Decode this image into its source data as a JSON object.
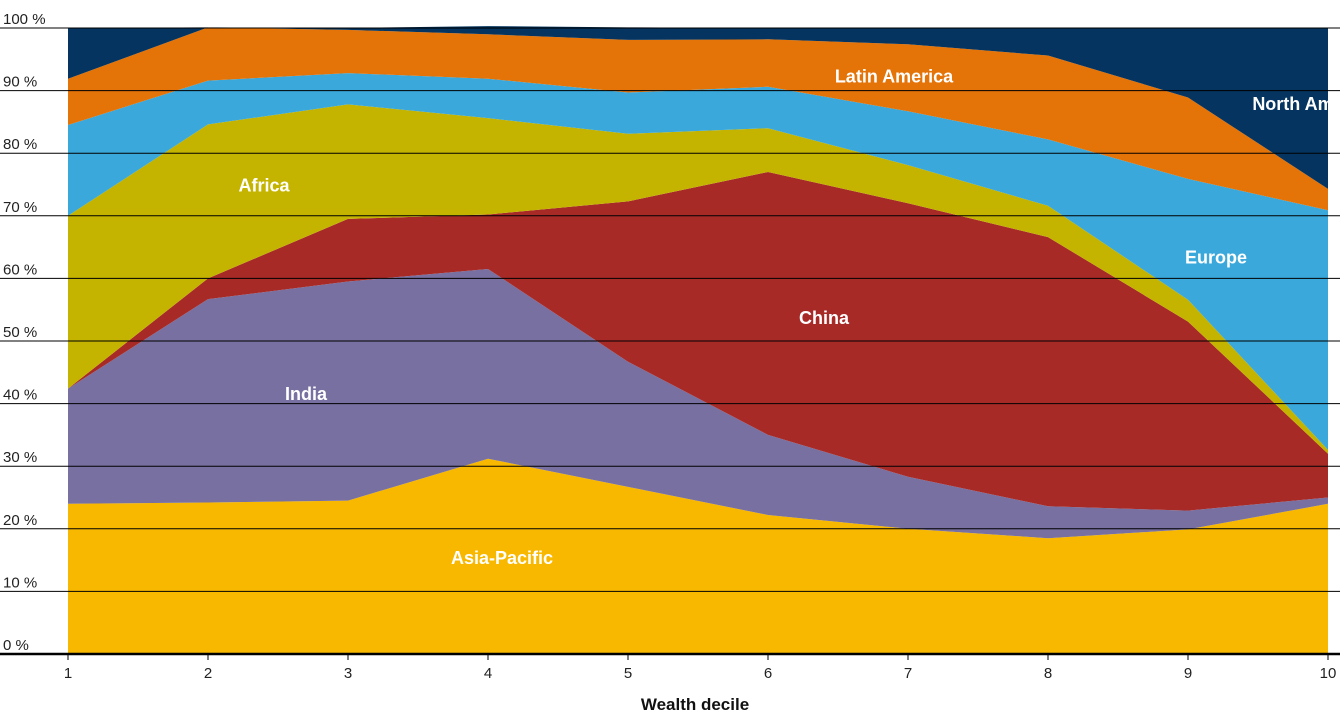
{
  "chart_data": {
    "type": "area",
    "stacked": true,
    "title": "",
    "xlabel": "Wealth decile",
    "ylabel": "",
    "x": [
      1,
      2,
      3,
      4,
      5,
      6,
      7,
      8,
      9,
      10
    ],
    "x_tick_labels": [
      "1",
      "2",
      "3",
      "4",
      "5",
      "6",
      "7",
      "8",
      "9",
      "10"
    ],
    "ylim": [
      0,
      100
    ],
    "y_ticks": [
      0,
      10,
      20,
      30,
      40,
      50,
      60,
      70,
      80,
      90,
      100
    ],
    "y_tick_labels": [
      "0 %",
      "10 %",
      "20 %",
      "30 %",
      "40 %",
      "50 %",
      "60 %",
      "70 %",
      "80 %",
      "90 %",
      "100 %"
    ],
    "grid": "horizontal",
    "legend": "inline labels",
    "series": [
      {
        "name": "Asia-Pacific",
        "color": "#F9B800",
        "values": [
          24,
          24.2,
          24.5,
          31.2,
          26.7,
          22.2,
          20,
          18.5,
          19.9,
          24
        ]
      },
      {
        "name": "India",
        "color": "#7870A0",
        "values": [
          18.4,
          32.5,
          35,
          30.3,
          20,
          12.8,
          8.3,
          5.1,
          3,
          1
        ]
      },
      {
        "name": "China",
        "color": "#A82A27",
        "values": [
          0,
          3.3,
          10,
          8.7,
          25.6,
          42,
          43.7,
          43,
          30.2,
          7
        ]
      },
      {
        "name": "Africa",
        "color": "#C4B400",
        "values": [
          27.6,
          24.6,
          18.3,
          15.4,
          10.8,
          7,
          6.1,
          5,
          3.5,
          0.6
        ]
      },
      {
        "name": "Europe",
        "color": "#3AA8DB",
        "values": [
          14.5,
          7,
          5,
          6.3,
          6.6,
          6.6,
          8.6,
          10.6,
          19.3,
          38.3
        ]
      },
      {
        "name": "Latin America",
        "color": "#E47308",
        "values": [
          7.4,
          8.5,
          6.9,
          7.1,
          8.4,
          7.6,
          10.7,
          13.4,
          13,
          3.4
        ]
      },
      {
        "name": "North America",
        "color": "#04345F",
        "values": [
          8.1,
          0,
          0.3,
          1.3,
          2,
          1.8,
          2.6,
          4.4,
          11.1,
          25.7
        ]
      }
    ]
  }
}
